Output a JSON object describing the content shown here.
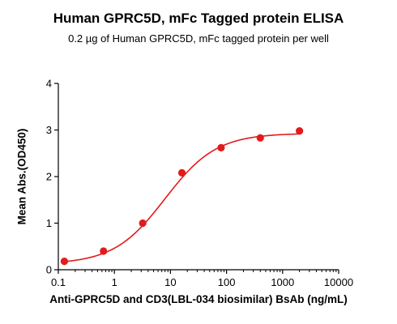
{
  "chart_data": {
    "type": "scatter",
    "title": "Human GPRC5D, mFc Tagged protein ELISA",
    "subtitle": "0.2 µg of Human GPRC5D, mFc tagged protein per well",
    "xlabel": "Anti-GPRC5D and CD3(LBL-034 biosimilar) BsAb (ng/mL)",
    "ylabel": "Mean Abs.(OD450)",
    "x_scale": "log",
    "xlim": [
      0.1,
      10000
    ],
    "ylim": [
      0,
      4
    ],
    "x_ticks": [
      "0.1",
      "1",
      "10",
      "100",
      "1000",
      "10000"
    ],
    "y_ticks": [
      "0",
      "1",
      "2",
      "3",
      "4"
    ],
    "grid": false,
    "colors": {
      "series": "#e31a1c",
      "axis": "#000000"
    },
    "series": [
      {
        "x": [
          0.128,
          0.64,
          3.2,
          16,
          80,
          400,
          2000
        ],
        "y": [
          0.18,
          0.4,
          1.0,
          2.08,
          2.62,
          2.83,
          2.98
        ],
        "fit": {
          "model": "4PL",
          "bottom": 0.12,
          "top": 2.93,
          "ec50": 8.0,
          "hill": 0.95
        }
      }
    ]
  }
}
